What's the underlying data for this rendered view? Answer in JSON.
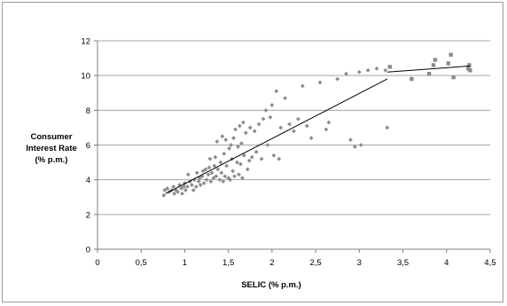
{
  "chart_data": {
    "type": "scatter",
    "title": "",
    "xlabel": "SELIC (% p.m.)",
    "ylabel_lines": [
      "Consumer",
      "Interest Rate",
      "(% p.m.)"
    ],
    "xlim": [
      0,
      4.5
    ],
    "ylim": [
      0,
      12
    ],
    "x_ticks": [
      "0",
      "0,5",
      "1",
      "1,5",
      "2",
      "2,5",
      "3",
      "3,5",
      "4",
      "4,5"
    ],
    "y_ticks": [
      "0",
      "2",
      "4",
      "6",
      "8",
      "10",
      "12"
    ],
    "grid": "horizontal",
    "colors": {
      "diamond": "#8c8c8c",
      "square": "#8a8a8a",
      "trend": "#000000",
      "grid": "#a6a6a6"
    },
    "series": [
      {
        "marker": "diamond",
        "points": [
          [
            0.76,
            3.1
          ],
          [
            0.77,
            3.4
          ],
          [
            0.8,
            3.5
          ],
          [
            0.82,
            3.3
          ],
          [
            0.85,
            3.4
          ],
          [
            0.87,
            3.6
          ],
          [
            0.88,
            3.2
          ],
          [
            0.9,
            3.4
          ],
          [
            0.92,
            3.3
          ],
          [
            0.94,
            3.7
          ],
          [
            0.96,
            3.5
          ],
          [
            0.97,
            3.2
          ],
          [
            0.99,
            3.6
          ],
          [
            1.0,
            3.8
          ],
          [
            1.01,
            3.4
          ],
          [
            1.03,
            3.6
          ],
          [
            1.04,
            4.3
          ],
          [
            1.06,
            3.9
          ],
          [
            1.08,
            3.7
          ],
          [
            1.1,
            3.4
          ],
          [
            1.11,
            4.0
          ],
          [
            1.13,
            3.6
          ],
          [
            1.14,
            4.4
          ],
          [
            1.16,
            3.9
          ],
          [
            1.17,
            4.1
          ],
          [
            1.18,
            3.7
          ],
          [
            1.2,
            4.2
          ],
          [
            1.21,
            4.5
          ],
          [
            1.22,
            3.8
          ],
          [
            1.24,
            4.6
          ],
          [
            1.25,
            4.0
          ],
          [
            1.27,
            4.3
          ],
          [
            1.28,
            4.7
          ],
          [
            1.29,
            5.2
          ],
          [
            1.3,
            3.9
          ],
          [
            1.31,
            4.4
          ],
          [
            1.33,
            4.1
          ],
          [
            1.34,
            4.8
          ],
          [
            1.35,
            5.3
          ],
          [
            1.36,
            4.2
          ],
          [
            1.37,
            6.2
          ],
          [
            1.38,
            4.6
          ],
          [
            1.4,
            4.0
          ],
          [
            1.41,
            5.0
          ],
          [
            1.42,
            4.4
          ],
          [
            1.43,
            6.5
          ],
          [
            1.44,
            3.9
          ],
          [
            1.45,
            5.5
          ],
          [
            1.46,
            4.2
          ],
          [
            1.47,
            6.3
          ],
          [
            1.48,
            4.8
          ],
          [
            1.5,
            4.1
          ],
          [
            1.51,
            5.8
          ],
          [
            1.52,
            4.0
          ],
          [
            1.53,
            6.0
          ],
          [
            1.54,
            5.2
          ],
          [
            1.55,
            4.5
          ],
          [
            1.56,
            6.4
          ],
          [
            1.57,
            4.2
          ],
          [
            1.58,
            6.9
          ],
          [
            1.6,
            5.0
          ],
          [
            1.61,
            5.9
          ],
          [
            1.62,
            4.3
          ],
          [
            1.63,
            7.1
          ],
          [
            1.64,
            4.9
          ],
          [
            1.65,
            6.1
          ],
          [
            1.66,
            4.1
          ],
          [
            1.67,
            7.3
          ],
          [
            1.68,
            5.4
          ],
          [
            1.7,
            6.7
          ],
          [
            1.72,
            4.6
          ],
          [
            1.74,
            5.1
          ],
          [
            1.75,
            7.0
          ],
          [
            1.77,
            5.3
          ],
          [
            1.8,
            6.8
          ],
          [
            1.82,
            5.6
          ],
          [
            1.85,
            7.2
          ],
          [
            1.88,
            5.2
          ],
          [
            1.9,
            7.5
          ],
          [
            1.93,
            8.0
          ],
          [
            1.95,
            6.0
          ],
          [
            1.98,
            7.6
          ],
          [
            2.0,
            8.3
          ],
          [
            2.02,
            5.4
          ],
          [
            2.05,
            9.1
          ],
          [
            2.08,
            5.2
          ],
          [
            2.1,
            7.0
          ],
          [
            2.15,
            8.7
          ],
          [
            2.2,
            7.2
          ],
          [
            2.25,
            6.8
          ],
          [
            2.3,
            7.5
          ],
          [
            2.35,
            9.4
          ],
          [
            2.4,
            7.1
          ],
          [
            2.45,
            6.4
          ],
          [
            2.55,
            9.6
          ],
          [
            2.62,
            6.9
          ],
          [
            2.65,
            7.3
          ],
          [
            2.75,
            9.8
          ],
          [
            2.85,
            10.1
          ],
          [
            2.9,
            6.3
          ],
          [
            2.95,
            5.9
          ],
          [
            3.0,
            10.2
          ],
          [
            3.02,
            6.0
          ],
          [
            3.1,
            10.3
          ],
          [
            3.2,
            10.4
          ],
          [
            3.3,
            10.3
          ],
          [
            3.32,
            7.0
          ]
        ]
      },
      {
        "marker": "square",
        "points": [
          [
            3.35,
            10.5
          ],
          [
            3.6,
            9.8
          ],
          [
            3.8,
            10.1
          ],
          [
            3.85,
            10.6
          ],
          [
            3.87,
            10.9
          ],
          [
            4.02,
            10.7
          ],
          [
            4.05,
            11.2
          ],
          [
            4.08,
            9.9
          ],
          [
            4.25,
            10.4
          ],
          [
            4.26,
            10.6
          ],
          [
            4.27,
            10.3
          ]
        ]
      }
    ],
    "trendlines": [
      {
        "from": [
          0.78,
          3.2
        ],
        "to": [
          3.32,
          9.8
        ]
      },
      {
        "from": [
          3.32,
          10.2
        ],
        "to": [
          4.27,
          10.55
        ]
      }
    ]
  }
}
